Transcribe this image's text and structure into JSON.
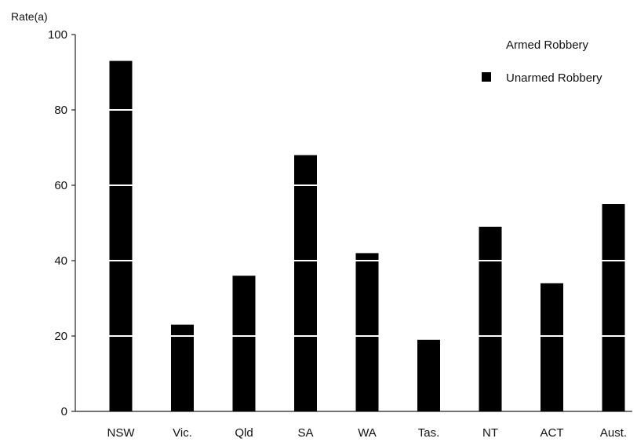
{
  "chart_data": {
    "type": "bar",
    "ylabel": "Rate(a)",
    "ylim": [
      0,
      100
    ],
    "yticks": [
      0,
      20,
      40,
      60,
      80,
      100
    ],
    "grid": false,
    "legend_position": "top-right",
    "categories": [
      "NSW",
      "Vic.",
      "Qld",
      "SA",
      "WA",
      "Tas.",
      "NT",
      "ACT",
      "Aust."
    ],
    "series": [
      {
        "name": "Armed Robbery",
        "color": "#ffffff",
        "values": [
          0,
          0,
          0,
          0,
          0,
          0,
          0,
          0,
          0
        ]
      },
      {
        "name": "Unarmed Robbery",
        "color": "#000000",
        "values": [
          93,
          23,
          36,
          68,
          42,
          19,
          49,
          34,
          55
        ]
      }
    ]
  }
}
